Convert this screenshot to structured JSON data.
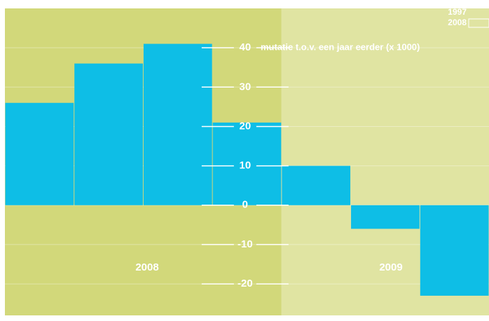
{
  "chart_data": {
    "type": "bar",
    "y_axis_label": "mutatie t.o.v. een jaar eerder (x 1000)",
    "categories": [
      null,
      null,
      null,
      null,
      null,
      null,
      null
    ],
    "values": [
      26,
      36,
      41,
      21,
      10,
      -6,
      -23
    ],
    "color": "#0ebee6",
    "ylim": [
      -28,
      50
    ],
    "yticks": [
      -20,
      -10,
      0,
      10,
      20,
      30,
      40
    ],
    "grid": true,
    "periods": [
      {
        "label": "2008",
        "color": "#d2d87a"
      },
      {
        "label": "2009",
        "color": "#e0e4a2"
      }
    ],
    "range_labels": [
      "1997",
      "2008"
    ]
  }
}
